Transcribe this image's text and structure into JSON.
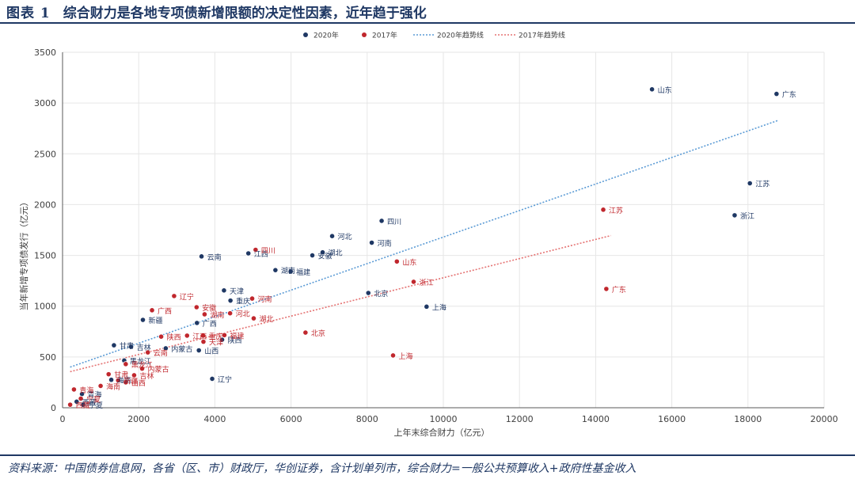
{
  "header": {
    "figure_label": "图表 1",
    "title": "综合财力是各地专项债新增限额的决定性因素，近年趋于强化"
  },
  "footer": {
    "source": "资料来源：中国债券信息网，各省（区、市）财政厅，华创证券，含计划单列市，综合财力=一般公共预算收入+政府性基金收入"
  },
  "colors": {
    "series_2020": "#1f3864",
    "series_2017": "#c0272d",
    "trend_2020": "#5b9bd5",
    "trend_2017": "#e57373",
    "label_2020": "#1f3864",
    "label_2017": "#c0272d",
    "grid": "#e6e6e6",
    "axis": "#595959"
  },
  "chart_data": {
    "type": "scatter",
    "xlabel": "上年末综合财力（亿元）",
    "ylabel": "当年新增专项债发行（亿元）",
    "xlim": [
      0,
      20000
    ],
    "ylim": [
      0,
      3500
    ],
    "x_ticks": [
      0,
      2000,
      4000,
      6000,
      8000,
      10000,
      12000,
      14000,
      16000,
      18000,
      20000
    ],
    "y_ticks": [
      0,
      500,
      1000,
      1500,
      2000,
      2500,
      3000,
      3500
    ],
    "grid": true,
    "legend_position": "top-center",
    "legend": [
      "2020年",
      "2017年",
      "2020年趋势线",
      "2017年趋势线"
    ],
    "series": [
      {
        "name": "2020年",
        "points": [
          {
            "label": "广东",
            "x": 18750,
            "y": 3090
          },
          {
            "label": "山东",
            "x": 15480,
            "y": 3135
          },
          {
            "label": "江苏",
            "x": 18050,
            "y": 2210
          },
          {
            "label": "浙江",
            "x": 17650,
            "y": 1895
          },
          {
            "label": "四川",
            "x": 8380,
            "y": 1840
          },
          {
            "label": "河北",
            "x": 7080,
            "y": 1690
          },
          {
            "label": "河南",
            "x": 8120,
            "y": 1625
          },
          {
            "label": "湖北",
            "x": 6830,
            "y": 1530
          },
          {
            "label": "江西",
            "x": 4880,
            "y": 1520
          },
          {
            "label": "安徽",
            "x": 6560,
            "y": 1500
          },
          {
            "label": "云南",
            "x": 3650,
            "y": 1490
          },
          {
            "label": "湖南",
            "x": 5590,
            "y": 1355
          },
          {
            "label": "福建",
            "x": 5990,
            "y": 1340
          },
          {
            "label": "北京",
            "x": 8030,
            "y": 1130
          },
          {
            "label": "天津",
            "x": 4240,
            "y": 1155
          },
          {
            "label": "重庆",
            "x": 4410,
            "y": 1055
          },
          {
            "label": "上海",
            "x": 9560,
            "y": 995
          },
          {
            "label": "新疆",
            "x": 2110,
            "y": 865
          },
          {
            "label": "广西",
            "x": 3530,
            "y": 835
          },
          {
            "label": "甘肃",
            "x": 1350,
            "y": 615
          },
          {
            "label": "吉林",
            "x": 1800,
            "y": 600
          },
          {
            "label": "内蒙古",
            "x": 2710,
            "y": 585
          },
          {
            "label": "山西",
            "x": 3580,
            "y": 565
          },
          {
            "label": "陕西",
            "x": 4190,
            "y": 670
          },
          {
            "label": "辽宁",
            "x": 3930,
            "y": 285
          },
          {
            "label": "黑龙江",
            "x": 1620,
            "y": 465
          },
          {
            "label": "海南",
            "x": 1280,
            "y": 275
          },
          {
            "label": "青海",
            "x": 510,
            "y": 135
          },
          {
            "label": "西藏",
            "x": 370,
            "y": 60
          },
          {
            "label": "宁夏",
            "x": 540,
            "y": 30
          }
        ]
      },
      {
        "name": "2017年",
        "points": [
          {
            "label": "广东",
            "x": 14280,
            "y": 1170
          },
          {
            "label": "江苏",
            "x": 14200,
            "y": 1950
          },
          {
            "label": "山东",
            "x": 8780,
            "y": 1440
          },
          {
            "label": "浙江",
            "x": 9220,
            "y": 1240
          },
          {
            "label": "四川",
            "x": 5070,
            "y": 1555
          },
          {
            "label": "北京",
            "x": 6380,
            "y": 740
          },
          {
            "label": "上海",
            "x": 8680,
            "y": 515
          },
          {
            "label": "辽宁",
            "x": 2930,
            "y": 1100
          },
          {
            "label": "河南",
            "x": 4980,
            "y": 1075
          },
          {
            "label": "广西",
            "x": 2350,
            "y": 960
          },
          {
            "label": "安徽",
            "x": 3520,
            "y": 990
          },
          {
            "label": "湖南",
            "x": 3730,
            "y": 920
          },
          {
            "label": "河北",
            "x": 4400,
            "y": 930
          },
          {
            "label": "湖北",
            "x": 5020,
            "y": 880
          },
          {
            "label": "陕西",
            "x": 2590,
            "y": 700
          },
          {
            "label": "江西",
            "x": 3270,
            "y": 710
          },
          {
            "label": "重庆",
            "x": 3690,
            "y": 710
          },
          {
            "label": "福建",
            "x": 4250,
            "y": 715
          },
          {
            "label": "天津",
            "x": 3700,
            "y": 650
          },
          {
            "label": "云南",
            "x": 2240,
            "y": 545
          },
          {
            "label": "黑龙江",
            "x": 1660,
            "y": 430
          },
          {
            "label": "内蒙古",
            "x": 2090,
            "y": 385
          },
          {
            "label": "吉林",
            "x": 1880,
            "y": 320
          },
          {
            "label": "甘肃",
            "x": 1210,
            "y": 330
          },
          {
            "label": "新疆",
            "x": 1460,
            "y": 270
          },
          {
            "label": "山西",
            "x": 1660,
            "y": 250
          },
          {
            "label": "海南",
            "x": 1000,
            "y": 215
          },
          {
            "label": "青海",
            "x": 300,
            "y": 180
          },
          {
            "label": "宁夏",
            "x": 480,
            "y": 90
          },
          {
            "label": "西藏",
            "x": 200,
            "y": 30
          }
        ]
      }
    ],
    "trendlines": [
      {
        "name": "2020年趋势线",
        "x": [
          200,
          18800
        ],
        "y": [
          400,
          2830
        ]
      },
      {
        "name": "2017年趋势线",
        "x": [
          200,
          14400
        ],
        "y": [
          355,
          1695
        ]
      }
    ]
  }
}
